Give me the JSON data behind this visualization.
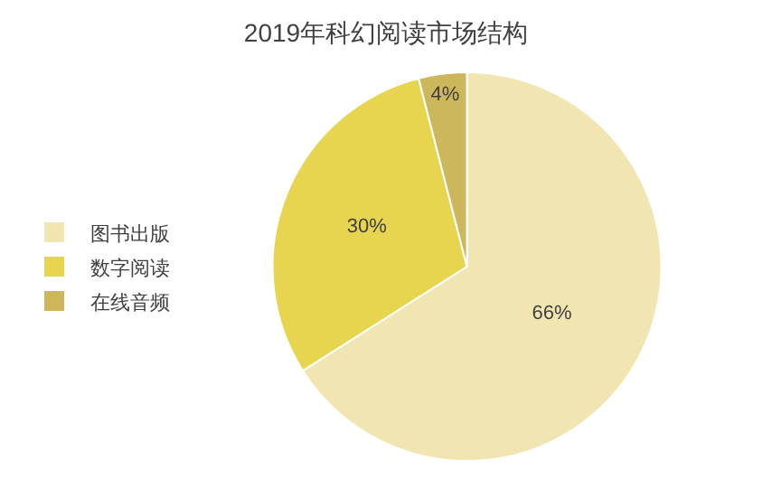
{
  "chart_data": {
    "type": "pie",
    "title": "2019年科幻阅读市场结构",
    "categories": [
      "图书出版",
      "数字阅读",
      "在线音频"
    ],
    "values": [
      66,
      30,
      4
    ],
    "colors": [
      "#f1e6b2",
      "#e8d54f",
      "#cdb75c"
    ],
    "value_labels": [
      "66%",
      "30%",
      "4%"
    ],
    "legend": "left"
  }
}
